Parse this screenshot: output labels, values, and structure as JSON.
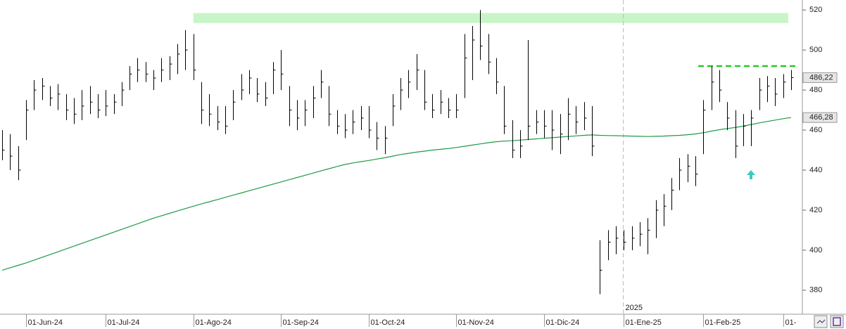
{
  "chart_data": {
    "type": "ohlc",
    "categories": [
      null,
      null,
      null,
      "01-Jun-24",
      null,
      null,
      null,
      null,
      null,
      null,
      null,
      null,
      null,
      "01-Jul-24",
      null,
      null,
      null,
      null,
      null,
      null,
      null,
      null,
      null,
      null,
      "01-Ago-24",
      null,
      null,
      null,
      null,
      null,
      null,
      null,
      null,
      null,
      null,
      "01-Sep-24",
      null,
      null,
      null,
      null,
      null,
      null,
      null,
      null,
      null,
      null,
      "01-Oct-24",
      null,
      null,
      null,
      null,
      null,
      null,
      null,
      null,
      null,
      null,
      "01-Nov-24",
      null,
      null,
      null,
      null,
      null,
      null,
      null,
      null,
      null,
      null,
      "01-Dic-24",
      null,
      null,
      null,
      null,
      null,
      null,
      null,
      null,
      null,
      "01-Ene-25",
      null,
      null,
      null,
      null,
      null,
      null,
      null,
      null,
      null,
      "01-Feb-25",
      null,
      null,
      null,
      null,
      null,
      null,
      null,
      null,
      null,
      "01-",
      null
    ],
    "high": [
      460,
      458,
      452,
      475,
      485,
      486,
      482,
      483,
      478,
      476,
      480,
      482,
      478,
      480,
      478,
      484,
      492,
      496,
      494,
      490,
      496,
      497,
      503,
      510,
      508,
      484,
      478,
      472,
      472,
      480,
      488,
      490,
      486,
      484,
      494,
      500,
      482,
      475,
      475,
      482,
      490,
      482,
      470,
      468,
      470,
      472,
      472,
      464,
      462,
      478,
      486,
      490,
      498,
      490,
      478,
      480,
      476,
      478,
      508,
      512,
      520,
      508,
      496,
      482,
      465,
      460,
      505,
      470,
      470,
      470,
      468,
      476,
      472,
      474,
      472,
      405,
      410,
      412,
      410,
      412,
      414,
      416,
      425,
      428,
      436,
      446,
      448,
      447,
      475,
      492,
      490,
      474,
      470,
      468,
      470,
      486,
      487,
      486,
      488,
      490
    ],
    "low": [
      445,
      440,
      435,
      455,
      470,
      475,
      472,
      470,
      465,
      463,
      465,
      468,
      466,
      467,
      468,
      472,
      480,
      484,
      484,
      480,
      484,
      485,
      488,
      490,
      485,
      463,
      462,
      460,
      458,
      465,
      475,
      478,
      474,
      472,
      478,
      480,
      462,
      460,
      462,
      466,
      476,
      462,
      458,
      456,
      458,
      460,
      456,
      450,
      448,
      462,
      470,
      476,
      480,
      470,
      466,
      468,
      466,
      466,
      476,
      485,
      495,
      488,
      478,
      458,
      446,
      446,
      455,
      458,
      456,
      450,
      448,
      455,
      458,
      460,
      447,
      378,
      395,
      398,
      400,
      400,
      402,
      398,
      406,
      412,
      420,
      430,
      434,
      432,
      448,
      470,
      474,
      460,
      446,
      452,
      452,
      470,
      474,
      472,
      476,
      480
    ],
    "close": [
      450,
      447,
      440,
      470,
      480,
      482,
      476,
      478,
      470,
      468,
      472,
      474,
      470,
      472,
      474,
      480,
      488,
      490,
      488,
      486,
      490,
      493,
      498,
      500,
      490,
      470,
      468,
      464,
      462,
      474,
      480,
      486,
      478,
      476,
      490,
      488,
      470,
      466,
      470,
      476,
      484,
      468,
      462,
      460,
      464,
      466,
      460,
      456,
      456,
      472,
      480,
      484,
      490,
      474,
      470,
      474,
      470,
      470,
      496,
      505,
      502,
      494,
      484,
      462,
      450,
      452,
      462,
      464,
      462,
      460,
      458,
      468,
      464,
      466,
      452,
      390,
      404,
      406,
      404,
      406,
      408,
      410,
      420,
      422,
      430,
      440,
      442,
      438,
      470,
      484,
      480,
      466,
      452,
      462,
      466,
      480,
      482,
      478,
      484,
      486.22
    ],
    "color": "#000000",
    "ma": {
      "color": "#1e9a46",
      "values": [
        390,
        391.2,
        392.4,
        393.6,
        395,
        396.4,
        397.8,
        399.2,
        400.6,
        402,
        403.4,
        404.8,
        406.2,
        407.6,
        409,
        410.4,
        411.8,
        413.2,
        414.6,
        416,
        417.2,
        418.4,
        419.6,
        420.8,
        422,
        423.1,
        424.2,
        425.3,
        426.4,
        427.5,
        428.6,
        429.7,
        430.8,
        431.9,
        433,
        434.1,
        435.2,
        436.3,
        437.4,
        438.5,
        439.6,
        440.7,
        441.8,
        442.8,
        443.6,
        444.2,
        444.8,
        445.5,
        446.2,
        447,
        447.8,
        448.4,
        449,
        449.5,
        450,
        450.4,
        450.8,
        451.3,
        451.9,
        452.5,
        453.1,
        453.7,
        454.2,
        454.5,
        454.7,
        455,
        455.3,
        455.6,
        455.9,
        456.2,
        456.5,
        456.8,
        457.1,
        457.4,
        457.6,
        457.4,
        457.3,
        457.2,
        457.1,
        457,
        456.9,
        456.8,
        456.9,
        457,
        457.2,
        457.4,
        457.7,
        458.1,
        458.7,
        459.5,
        460.2,
        460.8,
        461.3,
        462,
        462.8,
        463.6,
        464.3,
        465,
        465.7,
        466.28
      ]
    },
    "price_tags": [
      {
        "value": 486.22,
        "label": "486,22"
      },
      {
        "value": 466.28,
        "label": "466,28"
      }
    ],
    "zone": {
      "low": 513.5,
      "high": 518.5,
      "color": "#c8f5c8"
    },
    "level": {
      "value": 492,
      "color": "#22cc22"
    },
    "year_label": "2025",
    "ylim": [
      368,
      525
    ],
    "yticks": [
      380,
      400,
      420,
      440,
      460,
      480,
      500,
      520
    ],
    "grid": false
  }
}
